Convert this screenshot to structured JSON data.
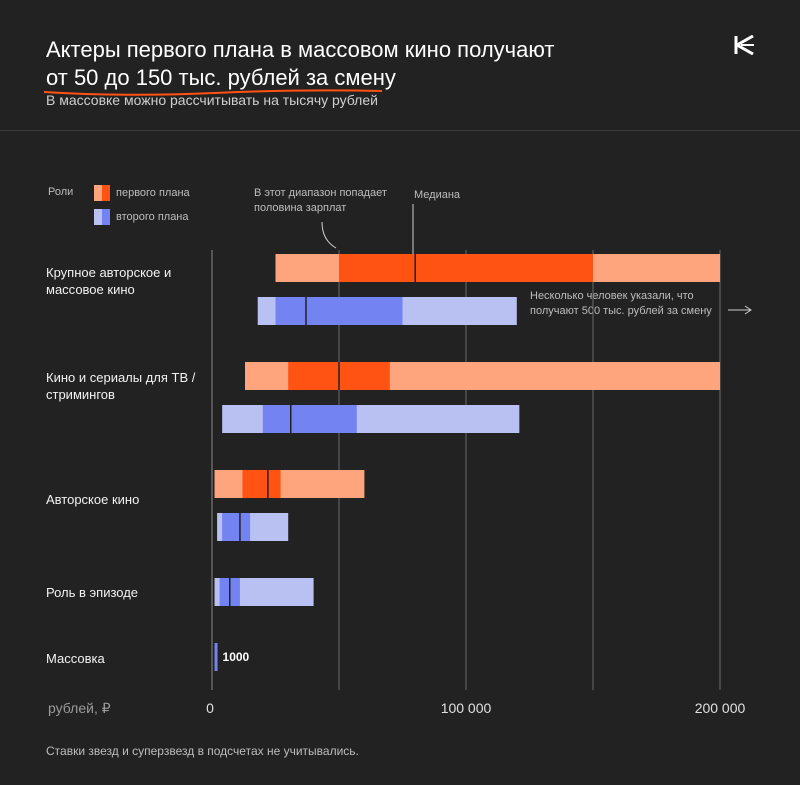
{
  "header": {
    "title_line1": "Актеры первого плана в массовом кино получают",
    "title_line2": "от 50 до 150 тыс. рублей за смену",
    "subtitle": "В массовке можно рассчитывать на тысячу рублей",
    "logo_icon": "k-logo-icon"
  },
  "legend": {
    "title": "Роли",
    "items": [
      {
        "label": "первого плана",
        "colors": [
          "#ffa57e",
          "#ff5314"
        ]
      },
      {
        "label": "второго плана",
        "colors": [
          "#b9c0f2",
          "#7383f2"
        ]
      }
    ]
  },
  "annotations": {
    "range": "В этот диапазон попадает половина зарплат",
    "median": "Медиана",
    "outlier": "Несколько человек указали, что получают 500 тыс. рублей за смену",
    "massovka_value": "1000"
  },
  "footer": "Ставки звезд и суперзвезд в подсчетах не учитывались.",
  "chart_data": {
    "type": "bar",
    "orientation": "horizontal-range",
    "x_unit_label": "рублей, ₽",
    "xlim": [
      0,
      200000
    ],
    "x_ticks": [
      0,
      100000,
      200000
    ],
    "x_tick_labels": [
      "0",
      "100 000",
      "200 000"
    ],
    "grid": true,
    "legend_position": "top-left",
    "colors": {
      "lead_range": "#ffa57e",
      "lead_iqr": "#ff5314",
      "support_range": "#b9c0f2",
      "support_iqr": "#7383f2"
    },
    "series": [
      {
        "name": "первого плана"
      },
      {
        "name": "второго плана"
      }
    ],
    "categories": [
      {
        "label": "Крупное авторское и массовое кино",
        "lead": {
          "min": 25000,
          "q1": 50000,
          "median": 80000,
          "q3": 150000,
          "max": 200000
        },
        "support": {
          "min": 18000,
          "q1": 25000,
          "median": 37000,
          "q3": 75000,
          "max": 120000
        }
      },
      {
        "label": "Кино и сериалы для ТВ / стримингов",
        "lead": {
          "min": 13000,
          "q1": 30000,
          "median": 50000,
          "q3": 70000,
          "max": 200000
        },
        "support": {
          "min": 4000,
          "q1": 20000,
          "median": 31000,
          "q3": 57000,
          "max": 121000
        }
      },
      {
        "label": "Авторское кино",
        "lead": {
          "min": 1000,
          "q1": 12000,
          "median": 22000,
          "q3": 27000,
          "max": 60000
        },
        "support": {
          "min": 2000,
          "q1": 4000,
          "median": 11000,
          "q3": 15000,
          "max": 30000
        }
      },
      {
        "label": "Роль в эпизоде",
        "lead": null,
        "support": {
          "min": 1000,
          "q1": 3000,
          "median": 7000,
          "q3": 11000,
          "max": 40000
        }
      },
      {
        "label": "Массовка",
        "lead": null,
        "support": {
          "min": 1000,
          "q1": 1000,
          "median": 1000,
          "q3": 1000,
          "max": 1000
        }
      }
    ]
  }
}
